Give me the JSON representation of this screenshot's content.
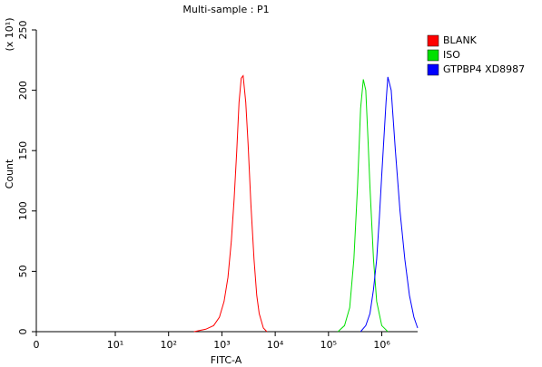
{
  "chart_data": {
    "type": "line",
    "title": "Multi-sample : P1",
    "x_label": "FITC-A",
    "y_label": "Count",
    "y_multiplier": "(x 10¹)",
    "xscale": "biexponential",
    "xlim": [
      0,
      4700000
    ],
    "xticks": [
      0,
      {
        "value": 10,
        "label": "10¹"
      },
      {
        "value": 100,
        "label": "10²"
      },
      {
        "value": 1000,
        "label": "10³"
      },
      {
        "value": 10000,
        "label": "10⁴"
      },
      {
        "value": 100000,
        "label": "10⁵"
      },
      {
        "value": 1000000,
        "label": "10⁶"
      }
    ],
    "ylim": [
      0,
      250
    ],
    "yticks": [
      0,
      50,
      100,
      150,
      200,
      250
    ],
    "legend": "right",
    "series": [
      {
        "name": "BLANK",
        "color": "#ff0000",
        "x": [
          300,
          500,
          700,
          900,
          1100,
          1300,
          1500,
          1700,
          1900,
          2100,
          2300,
          2500,
          2800,
          3100,
          3500,
          4000,
          4500,
          5000,
          6000,
          7000
        ],
        "values": [
          0,
          2,
          5,
          12,
          25,
          45,
          75,
          110,
          150,
          190,
          210,
          212,
          190,
          155,
          105,
          60,
          30,
          15,
          3,
          0
        ]
      },
      {
        "name": "ISO",
        "color": "#00e000",
        "x": [
          150000,
          200000,
          250000,
          300000,
          350000,
          400000,
          450000,
          500000,
          550000,
          600000,
          700000,
          800000,
          1000000,
          1300000
        ],
        "values": [
          0,
          5,
          20,
          60,
          120,
          185,
          209,
          200,
          160,
          120,
          60,
          25,
          5,
          0
        ]
      },
      {
        "name": "GTPBP4 XD8987",
        "color": "#0000ff",
        "x": [
          400000,
          500000,
          600000,
          700000,
          800000,
          900000,
          1000000,
          1200000,
          1300000,
          1500000,
          1800000,
          2200000,
          2700000,
          3300000,
          4000000,
          4700000
        ],
        "values": [
          0,
          5,
          15,
          35,
          60,
          95,
          130,
          190,
          211,
          200,
          150,
          100,
          60,
          30,
          12,
          3
        ]
      }
    ]
  }
}
